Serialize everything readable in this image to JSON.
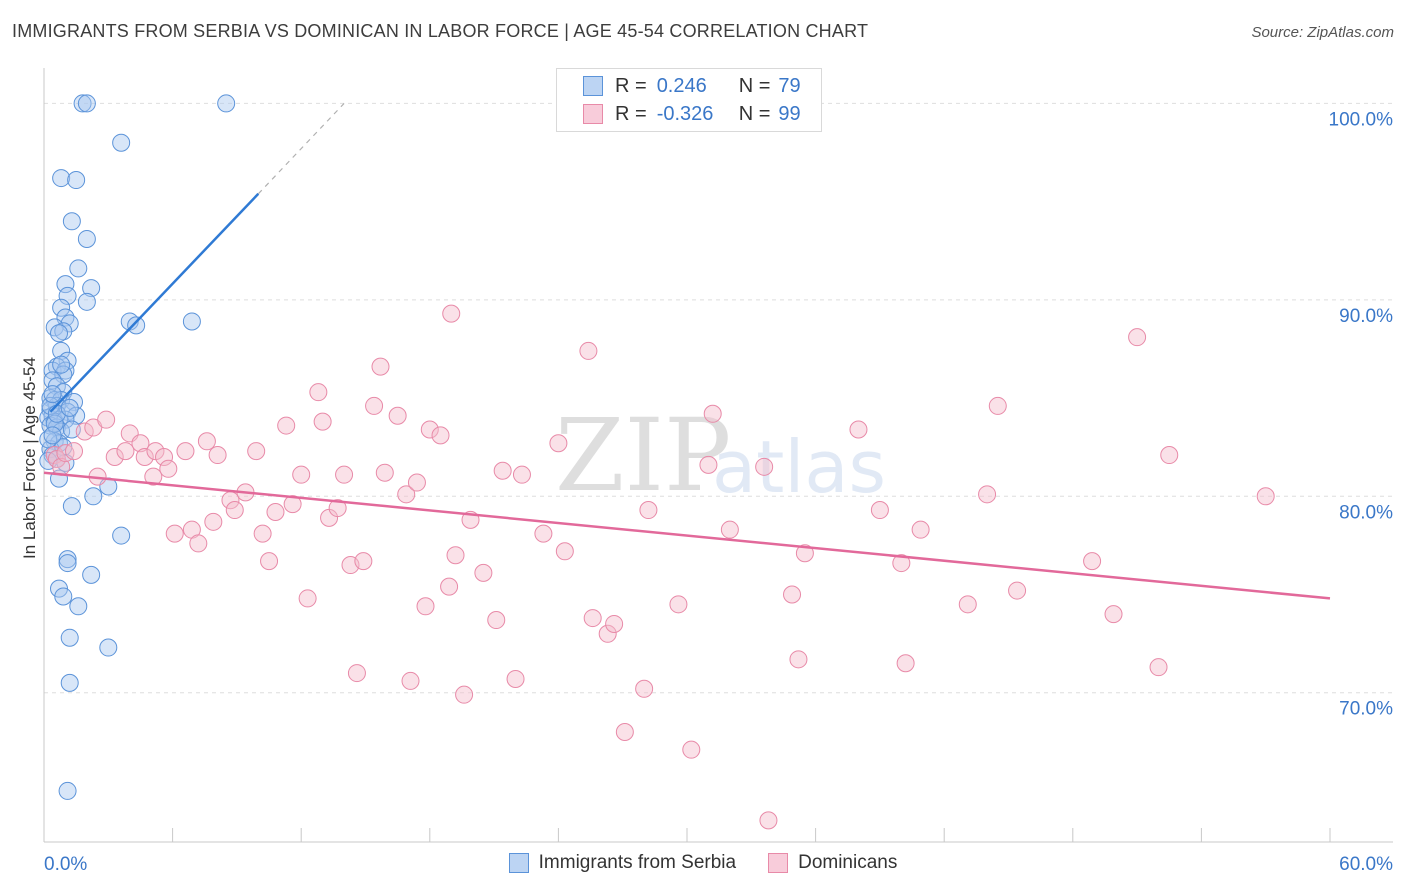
{
  "header": {
    "title": "IMMIGRANTS FROM SERBIA VS DOMINICAN IN LABOR FORCE | AGE 45-54 CORRELATION CHART",
    "source": "Source: ZipAtlas.com"
  },
  "legend": {
    "rows": [
      {
        "r_label": "R =",
        "r_value": "0.246",
        "n_label": "N =",
        "n_value": "79"
      },
      {
        "r_label": "R =",
        "r_value": "-0.326",
        "n_label": "N =",
        "n_value": "99"
      }
    ],
    "bottom": [
      "Immigrants from Serbia",
      "Dominicans"
    ]
  },
  "watermark": {
    "zip": "ZIP",
    "atlas": "atlas"
  },
  "colors": {
    "blue_fill": "#a9c8ef",
    "blue_stroke": "#5b93d9",
    "blue_line": "#2f7ad4",
    "pink_fill": "#f5bccd",
    "pink_stroke": "#e88aa8",
    "pink_line": "#e2699a",
    "axis_text": "#3a77c8",
    "grid": "#dedede"
  },
  "chart_data": {
    "type": "scatter",
    "ylabel": "In Labor Force | Age 45-54",
    "xlim": [
      0,
      60
    ],
    "ylim": [
      62.4,
      101.6
    ],
    "x_tick_labels": [
      {
        "x": 0,
        "label": "0.0%"
      },
      {
        "x": 60,
        "label": "60.0%"
      }
    ],
    "y_ticks": [
      {
        "y": 70,
        "label": "70.0%"
      },
      {
        "y": 80,
        "label": "80.0%"
      },
      {
        "y": 90,
        "label": "90.0%"
      },
      {
        "y": 100,
        "label": "100.0%"
      }
    ],
    "grid": true,
    "series": [
      {
        "name": "Immigrants from Serbia",
        "color": "blue",
        "trend": {
          "x0": 0.3,
          "y0": 84.3,
          "x1": 10.0,
          "y1": 95.4,
          "dash_x1": 14.0,
          "dash_y1": 100.0
        },
        "points": [
          [
            1.8,
            100.0
          ],
          [
            2.0,
            100.0
          ],
          [
            8.5,
            100.0
          ],
          [
            3.6,
            98.0
          ],
          [
            0.8,
            96.2
          ],
          [
            1.5,
            96.1
          ],
          [
            1.3,
            94.0
          ],
          [
            2.0,
            93.1
          ],
          [
            1.6,
            91.6
          ],
          [
            1.0,
            90.8
          ],
          [
            2.2,
            90.6
          ],
          [
            1.1,
            90.2
          ],
          [
            2.0,
            89.9
          ],
          [
            0.8,
            89.6
          ],
          [
            1.0,
            89.1
          ],
          [
            4.0,
            88.9
          ],
          [
            6.9,
            88.9
          ],
          [
            1.2,
            88.8
          ],
          [
            4.3,
            88.7
          ],
          [
            0.5,
            88.6
          ],
          [
            0.9,
            88.4
          ],
          [
            0.7,
            88.3
          ],
          [
            0.8,
            87.4
          ],
          [
            1.1,
            86.9
          ],
          [
            0.6,
            86.6
          ],
          [
            0.4,
            86.4
          ],
          [
            1.0,
            86.4
          ],
          [
            0.9,
            86.2
          ],
          [
            0.4,
            85.9
          ],
          [
            0.6,
            85.6
          ],
          [
            0.9,
            85.3
          ],
          [
            0.3,
            85.0
          ],
          [
            0.5,
            84.9
          ],
          [
            0.8,
            84.9
          ],
          [
            1.4,
            84.8
          ],
          [
            0.6,
            84.6
          ],
          [
            0.3,
            84.4
          ],
          [
            1.1,
            84.3
          ],
          [
            0.4,
            84.1
          ],
          [
            1.5,
            84.1
          ],
          [
            0.2,
            84.0
          ],
          [
            0.7,
            83.9
          ],
          [
            0.5,
            83.8
          ],
          [
            1.0,
            83.9
          ],
          [
            0.3,
            83.6
          ],
          [
            0.6,
            83.5
          ],
          [
            0.8,
            83.3
          ],
          [
            0.5,
            82.8
          ],
          [
            0.7,
            82.7
          ],
          [
            0.3,
            82.4
          ],
          [
            0.4,
            82.1
          ],
          [
            0.6,
            81.9
          ],
          [
            0.2,
            81.8
          ],
          [
            3.0,
            80.5
          ],
          [
            2.3,
            80.0
          ],
          [
            1.3,
            79.5
          ],
          [
            3.6,
            78.0
          ],
          [
            1.1,
            76.8
          ],
          [
            1.1,
            76.6
          ],
          [
            2.2,
            76.0
          ],
          [
            0.7,
            75.3
          ],
          [
            0.9,
            74.9
          ],
          [
            1.6,
            74.4
          ],
          [
            1.2,
            72.8
          ],
          [
            3.0,
            72.3
          ],
          [
            1.2,
            70.5
          ],
          [
            1.1,
            65.0
          ],
          [
            0.3,
            84.6
          ],
          [
            0.5,
            83.7
          ],
          [
            0.9,
            82.5
          ],
          [
            0.4,
            85.2
          ],
          [
            1.3,
            83.4
          ],
          [
            0.6,
            84.2
          ],
          [
            0.8,
            86.7
          ],
          [
            0.2,
            82.9
          ],
          [
            1.0,
            81.7
          ],
          [
            0.7,
            80.9
          ],
          [
            0.4,
            83.1
          ],
          [
            1.2,
            84.5
          ]
        ]
      },
      {
        "name": "Dominicans",
        "color": "pink",
        "trend": {
          "x0": 0,
          "y0": 81.2,
          "x1": 60,
          "y1": 74.8
        },
        "points": [
          [
            0.5,
            82.1
          ],
          [
            0.6,
            81.9
          ],
          [
            0.8,
            81.5
          ],
          [
            1.0,
            82.2
          ],
          [
            1.4,
            82.3
          ],
          [
            1.9,
            83.3
          ],
          [
            2.3,
            83.5
          ],
          [
            2.5,
            81.0
          ],
          [
            2.9,
            83.9
          ],
          [
            3.3,
            82.0
          ],
          [
            3.8,
            82.3
          ],
          [
            4.0,
            83.2
          ],
          [
            4.5,
            82.7
          ],
          [
            4.7,
            82.0
          ],
          [
            5.1,
            81.0
          ],
          [
            5.2,
            82.3
          ],
          [
            5.6,
            82.0
          ],
          [
            5.8,
            81.4
          ],
          [
            6.1,
            78.1
          ],
          [
            6.6,
            82.3
          ],
          [
            6.9,
            78.3
          ],
          [
            7.2,
            77.6
          ],
          [
            7.6,
            82.8
          ],
          [
            7.9,
            78.7
          ],
          [
            8.1,
            82.1
          ],
          [
            8.7,
            79.8
          ],
          [
            8.9,
            79.3
          ],
          [
            9.4,
            80.2
          ],
          [
            9.9,
            82.3
          ],
          [
            10.2,
            78.1
          ],
          [
            10.5,
            76.7
          ],
          [
            10.8,
            79.2
          ],
          [
            11.3,
            83.6
          ],
          [
            11.6,
            79.6
          ],
          [
            12.0,
            81.1
          ],
          [
            12.3,
            74.8
          ],
          [
            12.8,
            85.3
          ],
          [
            13.0,
            83.8
          ],
          [
            13.3,
            78.9
          ],
          [
            13.7,
            79.4
          ],
          [
            14.0,
            81.1
          ],
          [
            14.3,
            76.5
          ],
          [
            14.6,
            71.0
          ],
          [
            14.9,
            76.7
          ],
          [
            15.4,
            84.6
          ],
          [
            15.7,
            86.6
          ],
          [
            15.9,
            81.2
          ],
          [
            16.5,
            84.1
          ],
          [
            16.9,
            80.1
          ],
          [
            17.1,
            70.6
          ],
          [
            17.4,
            80.7
          ],
          [
            17.8,
            74.4
          ],
          [
            18.0,
            83.4
          ],
          [
            18.5,
            83.1
          ],
          [
            18.9,
            75.4
          ],
          [
            19.2,
            77.0
          ],
          [
            19.6,
            69.9
          ],
          [
            19.9,
            78.8
          ],
          [
            20.5,
            76.1
          ],
          [
            21.1,
            73.7
          ],
          [
            21.4,
            81.3
          ],
          [
            22.0,
            70.7
          ],
          [
            22.3,
            81.1
          ],
          [
            23.3,
            78.1
          ],
          [
            24.0,
            82.7
          ],
          [
            24.3,
            77.2
          ],
          [
            25.6,
            73.8
          ],
          [
            26.3,
            73.0
          ],
          [
            26.6,
            73.5
          ],
          [
            27.1,
            68.0
          ],
          [
            28.0,
            70.2
          ],
          [
            28.2,
            79.3
          ],
          [
            29.6,
            74.5
          ],
          [
            30.2,
            67.1
          ],
          [
            31.0,
            81.6
          ],
          [
            31.2,
            84.2
          ],
          [
            32.0,
            78.3
          ],
          [
            33.6,
            81.5
          ],
          [
            33.8,
            63.5
          ],
          [
            34.9,
            75.0
          ],
          [
            35.2,
            71.7
          ],
          [
            35.5,
            77.1
          ],
          [
            38.0,
            83.4
          ],
          [
            39.0,
            79.3
          ],
          [
            40.0,
            76.6
          ],
          [
            40.2,
            71.5
          ],
          [
            40.9,
            78.3
          ],
          [
            43.1,
            74.5
          ],
          [
            44.0,
            80.1
          ],
          [
            44.5,
            84.6
          ],
          [
            45.4,
            75.2
          ],
          [
            48.9,
            76.7
          ],
          [
            49.9,
            74.0
          ],
          [
            51.0,
            88.1
          ],
          [
            52.0,
            71.3
          ],
          [
            52.5,
            82.1
          ],
          [
            57.0,
            80.0
          ],
          [
            19.0,
            89.3
          ],
          [
            25.4,
            87.4
          ]
        ]
      }
    ]
  }
}
